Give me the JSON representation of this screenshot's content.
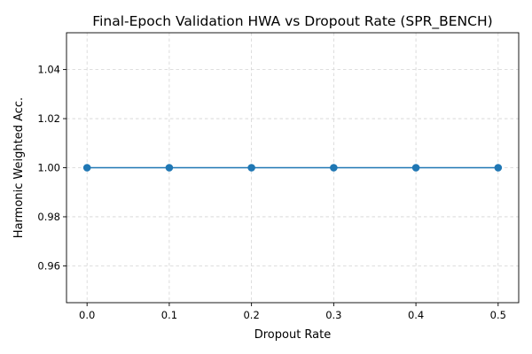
{
  "chart_data": {
    "type": "line",
    "title": "Final-Epoch Validation HWA vs Dropout Rate (SPR_BENCH)",
    "xlabel": "Dropout Rate",
    "ylabel": "Harmonic Weighted Acc.",
    "x": [
      0.0,
      0.1,
      0.2,
      0.3,
      0.4,
      0.5
    ],
    "series": [
      {
        "values": [
          1.0,
          1.0,
          1.0,
          1.0,
          1.0,
          1.0
        ],
        "color": "#1f77b4"
      }
    ],
    "xlim": [
      -0.025,
      0.525
    ],
    "ylim": [
      0.945,
      1.055
    ],
    "xticks": [
      0.0,
      0.1,
      0.2,
      0.3,
      0.4,
      0.5
    ],
    "xtick_labels": [
      "0.0",
      "0.1",
      "0.2",
      "0.3",
      "0.4",
      "0.5"
    ],
    "yticks": [
      0.96,
      0.98,
      1.0,
      1.02,
      1.04
    ],
    "ytick_labels": [
      "0.96",
      "0.98",
      "1.00",
      "1.02",
      "1.04"
    ],
    "grid": true,
    "grid_color": "#d3d3d3",
    "marker": "circle"
  }
}
